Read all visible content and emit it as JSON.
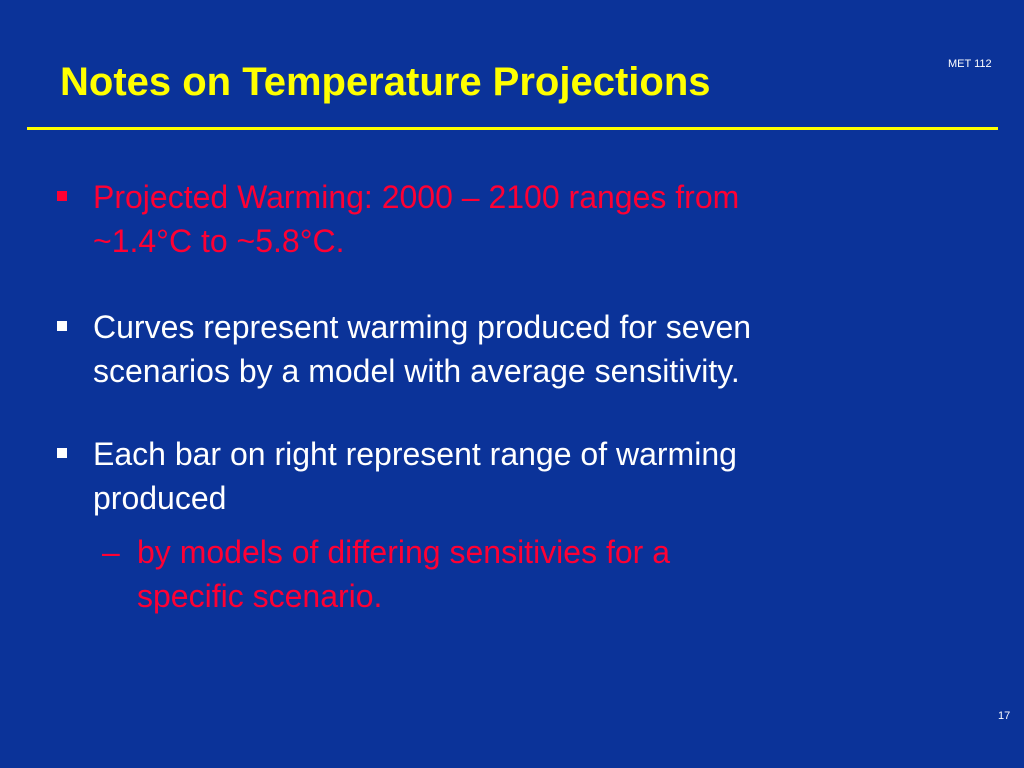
{
  "slide": {
    "title": "Notes on Temperature Projections",
    "course_code": "MET 112",
    "page_number": "17",
    "colors": {
      "background": "#0b3399",
      "title": "#ffff00",
      "rule": "#ffff00",
      "highlight_text": "#ff0033",
      "normal_text": "#ffffff"
    },
    "bullets": [
      {
        "lines": [
          "Projected Warming: 2000 – 2100 ranges from",
          "~1.4°C to ~5.8°C."
        ],
        "color": "highlight_text"
      },
      {
        "lines": [
          "Curves represent warming produced for seven",
          "scenarios by a model with average sensitivity."
        ],
        "color": "normal_text"
      },
      {
        "lines": [
          "Each bar on right represent range of warming",
          "produced"
        ],
        "color": "normal_text",
        "sub": {
          "dash": "–",
          "lines": [
            "by models of differing sensitivies for a",
            "specific scenario."
          ],
          "color": "highlight_text"
        }
      }
    ]
  }
}
